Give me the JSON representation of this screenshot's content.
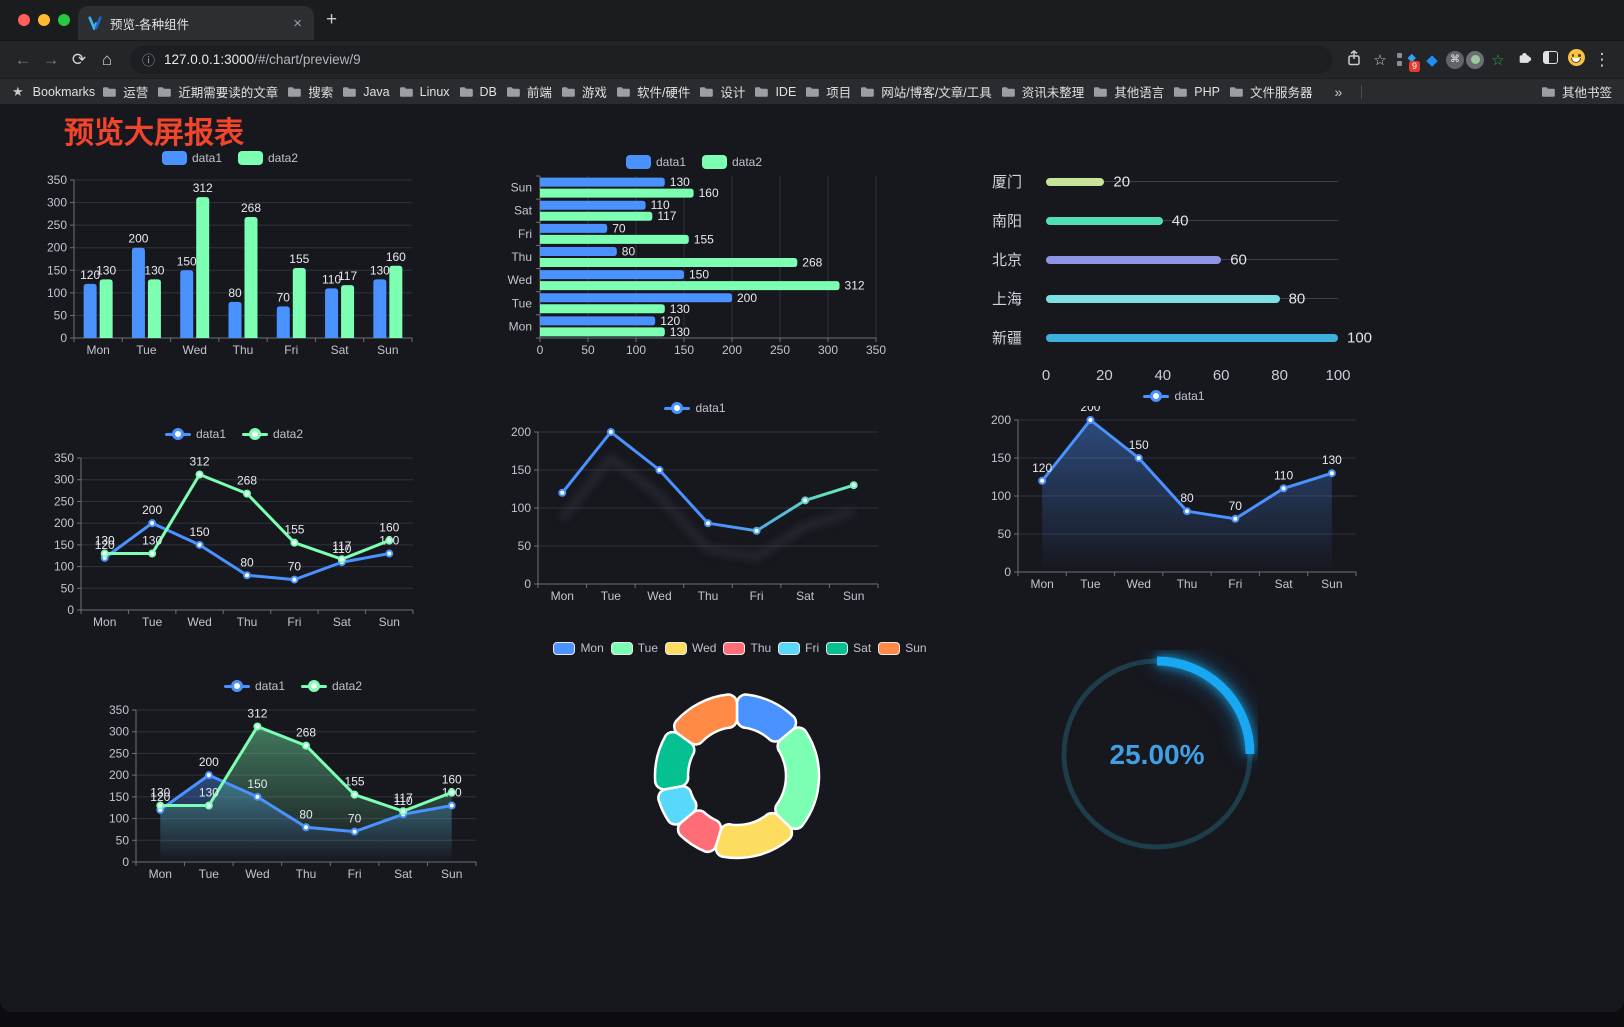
{
  "browser": {
    "tab": {
      "title": "预览-各种组件"
    },
    "url": {
      "host": "127.0.0.1:3000",
      "path": "/#/chart/preview/9"
    },
    "icons": {
      "back": "←",
      "forward": "→",
      "reload": "⟳",
      "home": "⌂",
      "info": "ⓘ",
      "star": "☆",
      "star_filled": "★",
      "menu": "⋮",
      "overflow": "»",
      "close": "×",
      "new_tab": "+",
      "command": "⌘",
      "diamond": "◆"
    },
    "extensions_badge": "9",
    "bookmarks_label": "Bookmarks",
    "folders": [
      "运营",
      "近期需要读的文章",
      "搜索",
      "Java",
      "Linux",
      "DB",
      "前端",
      "游戏",
      "软件/硬件",
      "设计",
      "IDE",
      "项目",
      "网站/博客/文章/工具",
      "资讯未整理",
      "其他语言",
      "PHP",
      "文件服务器"
    ],
    "other_bookmarks": "其他书签"
  },
  "page": {
    "title": "预览大屏报表",
    "title_color": "#f2452c",
    "background": "#17171e"
  },
  "palette": {
    "data1": "#4992ff",
    "data2": "#7cffb2",
    "axis": "#6e7079",
    "grid": "#32323d",
    "axis_label": "#c3c4ce",
    "value_label": "#e9eaef"
  },
  "chart_data": [
    {
      "id": "bar-chart",
      "type": "bar",
      "legend": true,
      "labels": true,
      "categories": [
        "Mon",
        "Tue",
        "Wed",
        "Thu",
        "Fri",
        "Sat",
        "Sun"
      ],
      "series": [
        {
          "name": "data1",
          "color": "#4992ff",
          "values": [
            120,
            200,
            150,
            80,
            70,
            110,
            130
          ]
        },
        {
          "name": "data2",
          "color": "#7cffb2",
          "values": [
            130,
            130,
            312,
            268,
            155,
            117,
            160
          ]
        }
      ],
      "ylim": [
        0,
        350
      ],
      "ystep": 50
    },
    {
      "id": "horizontal-bar-chart",
      "type": "hbar",
      "legend": true,
      "labels": true,
      "categories": [
        "Mon",
        "Tue",
        "Wed",
        "Thu",
        "Fri",
        "Sat",
        "Sun"
      ],
      "series": [
        {
          "name": "data1",
          "color": "#4992ff",
          "values": [
            120,
            200,
            150,
            80,
            70,
            110,
            130
          ]
        },
        {
          "name": "data2",
          "color": "#7cffb2",
          "values": [
            130,
            130,
            312,
            268,
            155,
            117,
            160
          ]
        }
      ],
      "xlim": [
        0,
        350
      ],
      "xstep": 50
    },
    {
      "id": "progress-bar-chart",
      "type": "progress",
      "max": 100,
      "ticks": [
        0,
        20,
        40,
        60,
        80,
        100
      ],
      "items": [
        {
          "label": "厦门",
          "value": 20,
          "color": "#c7e59a"
        },
        {
          "label": "南阳",
          "value": 40,
          "color": "#4fdfb2"
        },
        {
          "label": "北京",
          "value": 60,
          "color": "#8e93e6"
        },
        {
          "label": "上海",
          "value": 80,
          "color": "#7ddfe3"
        },
        {
          "label": "新疆",
          "value": 100,
          "color": "#3cb1dc"
        }
      ]
    },
    {
      "id": "line-chart",
      "type": "line",
      "legend": true,
      "labels": true,
      "categories": [
        "Mon",
        "Tue",
        "Wed",
        "Thu",
        "Fri",
        "Sat",
        "Sun"
      ],
      "series": [
        {
          "name": "data1",
          "color": "#4992ff",
          "values": [
            120,
            200,
            150,
            80,
            70,
            110,
            130
          ]
        },
        {
          "name": "data2",
          "color": "#7cffb2",
          "values": [
            130,
            130,
            312,
            268,
            155,
            117,
            160
          ]
        }
      ],
      "ylim": [
        0,
        350
      ],
      "ystep": 50
    },
    {
      "id": "gradient-line-chart",
      "type": "gline",
      "legend": true,
      "labels": false,
      "categories": [
        "Mon",
        "Tue",
        "Wed",
        "Thu",
        "Fri",
        "Sat",
        "Sun"
      ],
      "series": [
        {
          "name": "data1",
          "color": "#4992ff",
          "gradient_to": "#7cffb2",
          "values": [
            120,
            200,
            150,
            80,
            70,
            110,
            130
          ]
        }
      ],
      "ylim": [
        0,
        200
      ],
      "ystep": 50
    },
    {
      "id": "area-chart",
      "type": "area",
      "legend": true,
      "labels": true,
      "categories": [
        "Mon",
        "Tue",
        "Wed",
        "Thu",
        "Fri",
        "Sat",
        "Sun"
      ],
      "series": [
        {
          "name": "data1",
          "color": "#4992ff",
          "values": [
            120,
            200,
            150,
            80,
            70,
            110,
            130
          ]
        }
      ],
      "ylim": [
        0,
        200
      ],
      "ystep": 50
    },
    {
      "id": "dual-area-chart",
      "type": "area",
      "legend": true,
      "labels": true,
      "categories": [
        "Mon",
        "Tue",
        "Wed",
        "Thu",
        "Fri",
        "Sat",
        "Sun"
      ],
      "series": [
        {
          "name": "data1",
          "color": "#4992ff",
          "values": [
            120,
            200,
            150,
            80,
            70,
            110,
            130
          ]
        },
        {
          "name": "data2",
          "color": "#7cffb2",
          "values": [
            130,
            130,
            312,
            268,
            155,
            117,
            160
          ]
        }
      ],
      "ylim": [
        0,
        350
      ],
      "ystep": 50
    },
    {
      "id": "donut-chart",
      "type": "pie",
      "legend": true,
      "items": [
        {
          "name": "Mon",
          "value": 120,
          "color": "#4992ff"
        },
        {
          "name": "Tue",
          "value": 200,
          "color": "#7cffb2"
        },
        {
          "name": "Wed",
          "value": 150,
          "color": "#fddd60"
        },
        {
          "name": "Thu",
          "value": 80,
          "color": "#ff6e76"
        },
        {
          "name": "Fri",
          "value": 70,
          "color": "#58d9f9"
        },
        {
          "name": "Sat",
          "value": 110,
          "color": "#05c091"
        },
        {
          "name": "Sun",
          "value": 130,
          "color": "#ff8a45"
        }
      ]
    },
    {
      "id": "gauge-chart",
      "type": "gauge",
      "value": 25,
      "max": 100,
      "label": "25.00%",
      "color": "#18a7f2",
      "track_color": "#1d3d49",
      "text_color": "#3fa0e4"
    }
  ]
}
